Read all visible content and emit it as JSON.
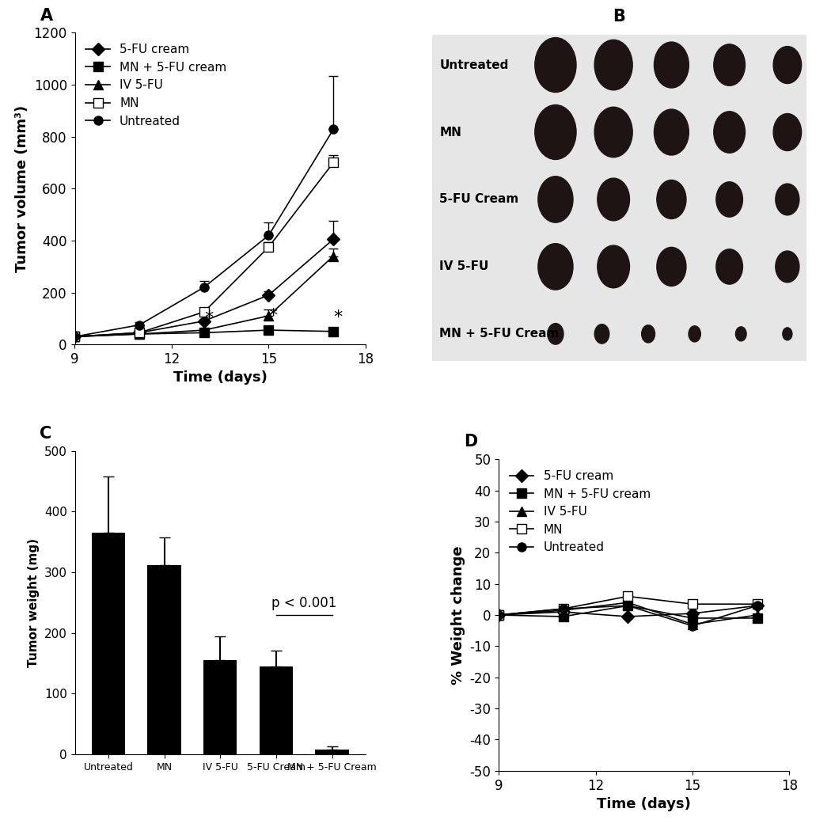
{
  "chart_data": [
    {
      "type": "line",
      "title": "A",
      "x_label": "Time (days)",
      "y_label": "Tumor volume (mm³)",
      "x": [
        9,
        11,
        13,
        15,
        17
      ],
      "xlim": [
        9,
        18
      ],
      "xticks": [
        9,
        12,
        15,
        18
      ],
      "ylim": [
        0,
        1200
      ],
      "yticks": [
        0,
        200,
        400,
        600,
        800,
        1000,
        1200
      ],
      "legend": "upper left",
      "series": [
        {
          "name": "5-FU cream",
          "color": "#000000",
          "marker": "diamond",
          "values": [
            30,
            45,
            90,
            190,
            405
          ],
          "errors": [
            3,
            5,
            8,
            15,
            70
          ]
        },
        {
          "name": "MN + 5-FU cream",
          "color": "#000000",
          "marker": "square",
          "values": [
            30,
            40,
            45,
            55,
            50
          ],
          "errors": [
            3,
            4,
            5,
            6,
            5
          ]
        },
        {
          "name": "IV 5-FU",
          "color": "#000000",
          "marker": "triangle",
          "values": [
            30,
            40,
            55,
            110,
            340
          ],
          "errors": [
            3,
            4,
            6,
            25,
            30
          ]
        },
        {
          "name": "MN",
          "color": "#000000",
          "marker": "open_square",
          "values": [
            30,
            45,
            125,
            375,
            700
          ],
          "errors": [
            3,
            5,
            10,
            20,
            30
          ]
        },
        {
          "name": "Untreated",
          "color": "#000000",
          "marker": "circle",
          "values": [
            30,
            75,
            220,
            420,
            828
          ],
          "errors": [
            4,
            10,
            25,
            50,
            205
          ]
        }
      ],
      "annotations": [
        {
          "x": 13,
          "y": 70,
          "text": "*"
        },
        {
          "x": 15,
          "y": 80,
          "text": "*"
        },
        {
          "x": 17,
          "y": 75,
          "text": "*"
        }
      ]
    },
    {
      "type": "image",
      "title": "B",
      "row_labels": [
        "Untreated",
        "MN",
        "5-FU Cream",
        "IV 5-FU",
        "MN + 5-FU Cream"
      ]
    },
    {
      "type": "bar",
      "title": "C",
      "y_label": "Tumor weight (mg)",
      "categories": [
        "Untreated",
        "MN",
        "IV 5-FU",
        "5-FU Cream",
        "MN + 5-FU Cream"
      ],
      "values": [
        365,
        312,
        155,
        145,
        8
      ],
      "errors": [
        93,
        45,
        40,
        26,
        5
      ],
      "color": "#000000",
      "ylim": [
        0,
        500
      ],
      "yticks": [
        0,
        100,
        200,
        300,
        400,
        500
      ],
      "annotations": [
        {
          "text": "p < 0.001",
          "from": 3,
          "to": 4,
          "y": 230
        }
      ]
    },
    {
      "type": "line",
      "title": "D",
      "x_label": "Time (days)",
      "y_label": "% Weight change",
      "x": [
        9,
        11,
        13,
        15,
        17
      ],
      "xlim": [
        9,
        18
      ],
      "xticks": [
        9,
        12,
        15,
        18
      ],
      "ylim": [
        -50,
        50
      ],
      "yticks": [
        -50,
        -40,
        -30,
        -20,
        -10,
        0,
        10,
        20,
        30,
        40,
        50
      ],
      "legend": "upper left",
      "series": [
        {
          "name": "5-FU cream",
          "color": "#000000",
          "marker": "diamond",
          "values": [
            0,
            1,
            -0.5,
            0.5,
            3
          ]
        },
        {
          "name": "MN + 5-FU cream",
          "color": "#000000",
          "marker": "square",
          "values": [
            0,
            -0.5,
            3,
            -1,
            -1
          ]
        },
        {
          "name": "IV 5-FU",
          "color": "#000000",
          "marker": "triangle",
          "values": [
            0,
            1.5,
            4,
            -3,
            0
          ]
        },
        {
          "name": "MN",
          "color": "#000000",
          "marker": "open_square",
          "values": [
            0,
            2,
            6,
            3.5,
            3.5
          ]
        },
        {
          "name": "Untreated",
          "color": "#000000",
          "marker": "circle",
          "values": [
            0,
            2,
            3,
            -3.5,
            3
          ]
        }
      ]
    }
  ]
}
